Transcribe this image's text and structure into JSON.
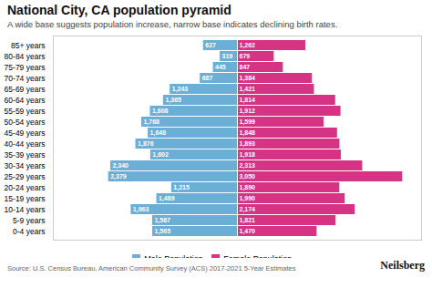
{
  "chart_data": {
    "type": "bar",
    "orientation": "horizontal",
    "title": "National City, CA population pyramid",
    "subtitle": "A wide base suggests population increase, narrow base indicates declining birth rates.",
    "source": "Source: U.S. Census Bureau, American Community Survey (ACS) 2017-2021 5-Year Estimates",
    "annotations": [
      "Neilsberg"
    ],
    "categories": [
      "0-4 years",
      "5-9 years",
      "10-14 years",
      "15-19 years",
      "20-24 years",
      "25-29 years",
      "30-34 years",
      "35-39 years",
      "40-44 years",
      "45-49 years",
      "50-54 years",
      "55-59 years",
      "60-64 years",
      "65-69 years",
      "70-74 years",
      "75-79 years",
      "80-84 years",
      "85+ years"
    ],
    "series": [
      {
        "name": "Male Population",
        "color": "#6baed6",
        "values": [
          1565,
          1567,
          1963,
          1489,
          1215,
          2379,
          2340,
          1602,
          1876,
          1648,
          1768,
          1608,
          1365,
          1243,
          687,
          445,
          319,
          627
        ],
        "value_labels": [
          "1,565",
          "1,567",
          "1,963",
          "1,489",
          "1,215",
          "2,379",
          "2,340",
          "1,602",
          "1,876",
          "1,648",
          "1,768",
          "1,608",
          "1,365",
          "1,243",
          "687",
          "445",
          "319",
          "627"
        ]
      },
      {
        "name": "Female Population",
        "color": "#d63384",
        "values": [
          1470,
          1821,
          2174,
          1990,
          1890,
          3050,
          2313,
          1918,
          1893,
          1848,
          1599,
          1912,
          1814,
          1421,
          1384,
          847,
          679,
          1262
        ],
        "value_labels": [
          "1,470",
          "1,821",
          "2,174",
          "1,990",
          "1,890",
          "3,050",
          "2,313",
          "1,918",
          "1,893",
          "1,848",
          "1,599",
          "1,912",
          "1,814",
          "1,421",
          "1,384",
          "847",
          "679",
          "1,262"
        ]
      }
    ],
    "xlim": [
      -3400,
      3400
    ],
    "tick_labels": "y",
    "data_labels": true,
    "grid": false,
    "legend": "bottom"
  }
}
